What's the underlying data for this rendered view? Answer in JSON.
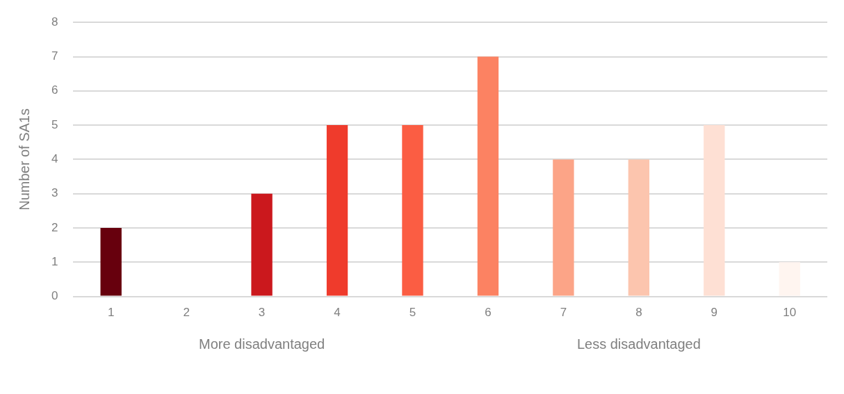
{
  "chart_data": {
    "type": "bar",
    "ylabel": "Number of SA1s",
    "categories": [
      "1",
      "2",
      "3",
      "4",
      "5",
      "6",
      "7",
      "8",
      "9",
      "10"
    ],
    "values": [
      2,
      0,
      3,
      5,
      5,
      7,
      4,
      4,
      5,
      1
    ],
    "colors": [
      "#67000d",
      "#a50f15",
      "#cb181d",
      "#ef3b2c",
      "#fb5d43",
      "#fc8262",
      "#fca487",
      "#fcc5ae",
      "#fee0d4",
      "#fff5f0"
    ],
    "ylim": [
      0,
      8
    ],
    "yticks": [
      0,
      1,
      2,
      3,
      4,
      5,
      6,
      7,
      8
    ],
    "grid": "y",
    "legend": false,
    "annotations": [
      "More disadvantaged",
      "Less disadvantaged"
    ]
  }
}
